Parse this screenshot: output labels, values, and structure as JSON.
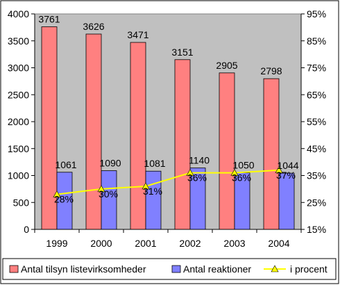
{
  "chart_data": {
    "type": "bar",
    "categories": [
      "1999",
      "2000",
      "2001",
      "2002",
      "2003",
      "2004"
    ],
    "series": [
      {
        "name": "Antal tilsyn listevirksomheder",
        "type": "bar",
        "axis": "left",
        "color": "#ff8080",
        "values": [
          3761,
          3626,
          3471,
          3151,
          2905,
          2798
        ],
        "labels": [
          "3761",
          "3626",
          "3471",
          "3151",
          "2905",
          "2798"
        ]
      },
      {
        "name": "Antal reaktioner",
        "type": "bar",
        "axis": "left",
        "color": "#8080ff",
        "values": [
          1061,
          1090,
          1081,
          1140,
          1050,
          1044
        ],
        "labels": [
          "1061",
          "1090",
          "1081",
          "1140",
          "1050",
          "1044"
        ]
      },
      {
        "name": "i procent",
        "type": "line",
        "axis": "right",
        "color": "#ffff00",
        "values": [
          28,
          30,
          31,
          36,
          36,
          37
        ],
        "labels": [
          "28%",
          "30%",
          "31%",
          "36%",
          "36%",
          "37%"
        ]
      }
    ],
    "y_left": {
      "min": 0,
      "max": 4000,
      "ticks": [
        "0",
        "500",
        "1000",
        "1500",
        "2000",
        "2500",
        "3000",
        "3500",
        "4000"
      ]
    },
    "y_right": {
      "min": 15,
      "max": 95,
      "ticks": [
        "15%",
        "25%",
        "35%",
        "45%",
        "55%",
        "65%",
        "75%",
        "85%",
        "95%"
      ]
    },
    "plot_background": "#c0c0c0",
    "grid": false,
    "legend_position": "bottom"
  }
}
